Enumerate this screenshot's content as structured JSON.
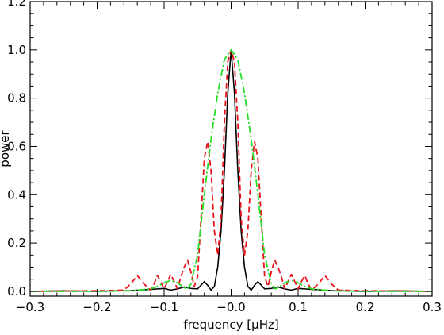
{
  "chart_data": {
    "type": "line",
    "title": "",
    "xlabel": "frequency [μHz]",
    "ylabel": "power",
    "xlim": [
      -0.3,
      0.3
    ],
    "ylim": [
      -0.02,
      1.2
    ],
    "xticks": [
      -0.3,
      -0.2,
      -0.1,
      0.0,
      0.1,
      0.2,
      0.3
    ],
    "xtick_labels": [
      "−0.3",
      "−0.2",
      "−0.1",
      "−0.0",
      "0.1",
      "0.2",
      "0.3"
    ],
    "yticks": [
      0.0,
      0.2,
      0.4,
      0.6,
      0.8,
      1.0,
      1.2
    ],
    "ytick_labels": [
      "0.0",
      "0.2",
      "0.4",
      "0.6",
      "0.8",
      "1.0",
      "1.2"
    ],
    "grid": false,
    "legend": "none",
    "series": [
      {
        "style": "solid",
        "color": "#000000",
        "x": [
          -0.3,
          -0.25,
          -0.2,
          -0.15,
          -0.12,
          -0.1,
          -0.09,
          -0.08,
          -0.07,
          -0.06,
          -0.05,
          -0.045,
          -0.04,
          -0.035,
          -0.03,
          -0.025,
          -0.02,
          -0.015,
          -0.01,
          -0.005,
          0.0,
          0.005,
          0.01,
          0.015,
          0.02,
          0.025,
          0.03,
          0.035,
          0.04,
          0.045,
          0.05,
          0.06,
          0.07,
          0.08,
          0.09,
          0.1,
          0.12,
          0.15,
          0.2,
          0.25,
          0.3
        ],
        "y": [
          0.0,
          0.002,
          0.0,
          0.003,
          0.008,
          0.012,
          0.005,
          0.01,
          0.018,
          0.012,
          0.01,
          0.025,
          0.04,
          0.025,
          0.005,
          0.02,
          0.1,
          0.25,
          0.5,
          0.82,
          1.0,
          0.82,
          0.5,
          0.25,
          0.1,
          0.02,
          0.005,
          0.025,
          0.04,
          0.025,
          0.01,
          0.012,
          0.018,
          0.01,
          0.005,
          0.012,
          0.008,
          0.003,
          0.0,
          0.002,
          0.0
        ]
      },
      {
        "style": "dashed",
        "color": "#e8141c",
        "x": [
          -0.3,
          -0.2,
          -0.16,
          -0.15,
          -0.14,
          -0.13,
          -0.12,
          -0.115,
          -0.11,
          -0.105,
          -0.1,
          -0.095,
          -0.09,
          -0.085,
          -0.08,
          -0.075,
          -0.07,
          -0.065,
          -0.06,
          -0.055,
          -0.05,
          -0.045,
          -0.04,
          -0.035,
          -0.03,
          -0.025,
          -0.02,
          -0.015,
          -0.01,
          -0.005,
          0.0,
          0.005,
          0.01,
          0.015,
          0.02,
          0.025,
          0.03,
          0.035,
          0.04,
          0.045,
          0.05,
          0.055,
          0.06,
          0.065,
          0.07,
          0.075,
          0.08,
          0.085,
          0.09,
          0.095,
          0.1,
          0.105,
          0.11,
          0.115,
          0.12,
          0.13,
          0.14,
          0.15,
          0.16,
          0.2,
          0.3
        ],
        "y": [
          0.0,
          0.002,
          0.005,
          0.03,
          0.065,
          0.03,
          0.005,
          0.03,
          0.065,
          0.04,
          0.01,
          0.04,
          0.07,
          0.04,
          0.01,
          0.06,
          0.1,
          0.13,
          0.08,
          0.02,
          0.06,
          0.3,
          0.55,
          0.62,
          0.5,
          0.25,
          0.15,
          0.3,
          0.7,
          0.95,
          1.0,
          0.95,
          0.7,
          0.3,
          0.15,
          0.25,
          0.5,
          0.62,
          0.55,
          0.3,
          0.06,
          0.02,
          0.08,
          0.13,
          0.1,
          0.06,
          0.01,
          0.04,
          0.07,
          0.04,
          0.01,
          0.04,
          0.065,
          0.03,
          0.005,
          0.03,
          0.065,
          0.03,
          0.005,
          0.002,
          0.0
        ]
      },
      {
        "style": "dashdot",
        "color": "#22dd22",
        "x": [
          -0.3,
          -0.2,
          -0.15,
          -0.12,
          -0.11,
          -0.1,
          -0.09,
          -0.08,
          -0.07,
          -0.065,
          -0.06,
          -0.05,
          -0.04,
          -0.03,
          -0.02,
          -0.01,
          0.0,
          0.01,
          0.02,
          0.03,
          0.04,
          0.05,
          0.06,
          0.065,
          0.07,
          0.08,
          0.09,
          0.1,
          0.11,
          0.12,
          0.15,
          0.2,
          0.3
        ],
        "y": [
          0.0,
          0.0,
          0.002,
          0.01,
          0.02,
          0.035,
          0.045,
          0.035,
          0.015,
          0.01,
          0.03,
          0.15,
          0.4,
          0.63,
          0.82,
          0.96,
          1.0,
          0.96,
          0.82,
          0.63,
          0.4,
          0.15,
          0.03,
          0.01,
          0.015,
          0.035,
          0.045,
          0.035,
          0.02,
          0.01,
          0.002,
          0.0,
          0.0
        ]
      }
    ]
  }
}
